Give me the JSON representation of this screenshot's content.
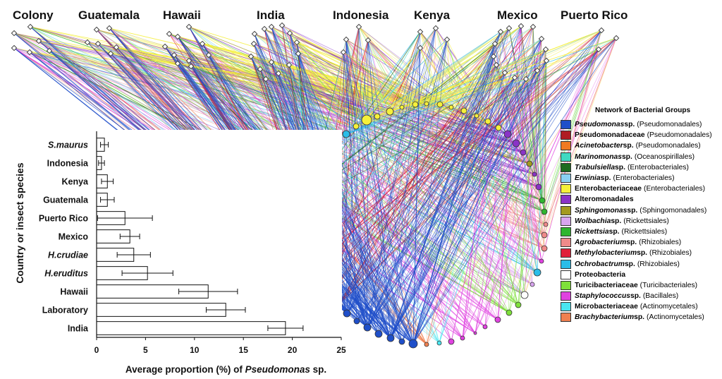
{
  "countries": [
    {
      "key": "colony",
      "label": "Colony"
    },
    {
      "key": "guatemala",
      "label": "Guatemala"
    },
    {
      "key": "hawaii",
      "label": "Hawaii"
    },
    {
      "key": "india",
      "label": "India"
    },
    {
      "key": "indonesia",
      "label": "Indonesia"
    },
    {
      "key": "kenya",
      "label": "Kenya"
    },
    {
      "key": "mexico",
      "label": "Mexico"
    },
    {
      "key": "puerto_rico",
      "label": "Puerto Rico"
    }
  ],
  "legend": {
    "title": "Network of Bacterial Groups",
    "items": [
      {
        "name": "Pseudomonas",
        "suffix": " sp.",
        "italic": true,
        "order": "(Pseudomonadales)",
        "color": "#1f4fc9"
      },
      {
        "name": "Pseudomonadaceae",
        "suffix": "",
        "italic": false,
        "order": "(Pseudomonadales)",
        "color": "#b01c23"
      },
      {
        "name": "Acinetobacter",
        "suffix": " sp.",
        "italic": true,
        "order": "(Pseudomonadales)",
        "color": "#f07a22"
      },
      {
        "name": "Marinomonas",
        "suffix": " sp.",
        "italic": true,
        "order": "(Oceanospirillales)",
        "color": "#3fd9c2"
      },
      {
        "name": "Trabulsiella",
        "suffix": " sp.",
        "italic": true,
        "order": "(Enterobacteriales)",
        "color": "#1d6b1f"
      },
      {
        "name": "Erwinia",
        "suffix": " sp.",
        "italic": true,
        "order": "(Enterobacteriales)",
        "color": "#8ad0f2"
      },
      {
        "name": "Enterobacteriaceae",
        "suffix": "",
        "italic": false,
        "order": "(Enterobacteriales)",
        "color": "#f5f03a"
      },
      {
        "name": "Alteromonadales",
        "suffix": "",
        "italic": false,
        "order": "",
        "color": "#8a33c7"
      },
      {
        "name": "Sphingomonas",
        "suffix": " sp.",
        "italic": true,
        "order": "(Sphingomonadales)",
        "color": "#a39a1f"
      },
      {
        "name": "Wolbachia",
        "suffix": " sp.",
        "italic": true,
        "order": "(Rickettsiales)",
        "color": "#d9a5f0"
      },
      {
        "name": "Rickettsia",
        "suffix": " sp.",
        "italic": true,
        "order": "(Rickettsiales)",
        "color": "#2fb52f"
      },
      {
        "name": "Agrobacterium",
        "suffix": " sp.",
        "italic": true,
        "order": "(Rhizobiales)",
        "color": "#f08a8a"
      },
      {
        "name": "Methylobacterium",
        "suffix": " sp.",
        "italic": true,
        "order": "(Rhizobiales)",
        "color": "#e0203a"
      },
      {
        "name": "Ochrobactrum",
        "suffix": " sp.",
        "italic": true,
        "order": "(Rhizobiales)",
        "color": "#2bbde8"
      },
      {
        "name": "Proteobacteria",
        "suffix": "",
        "italic": false,
        "order": "",
        "color": "#ffffff"
      },
      {
        "name": "Turicibacteriaceae",
        "suffix": "",
        "italic": false,
        "order": "(Turicibacteriales)",
        "color": "#7ee03a"
      },
      {
        "name": "Staphylococcus",
        "suffix": " sp.",
        "italic": true,
        "order": "(Bacillales)",
        "color": "#e042e0"
      },
      {
        "name": "Microbacteriaceae",
        "suffix": "",
        "italic": false,
        "order": "(Actinomycetales)",
        "color": "#4ae6f0"
      },
      {
        "name": "Brachybacterium",
        "suffix": " sp.",
        "italic": true,
        "order": "(Actinomycetales)",
        "color": "#f08050"
      }
    ]
  },
  "chart_data": {
    "type": "bar",
    "orientation": "horizontal",
    "xlabel": "Average proportion (%) of Pseudomonas sp.",
    "ylabel": "Country or insect species",
    "xlim": [
      0,
      25
    ],
    "xticks": [
      0,
      5,
      10,
      15,
      20,
      25
    ],
    "categories": [
      "S.maurus",
      "Indonesia",
      "Kenya",
      "Guatemala",
      "Puerto Rico",
      "Mexico",
      "H.crudiae",
      "H.eruditus",
      "Hawaii",
      "Laboratory",
      "India"
    ],
    "italic_categories": [
      "S.maurus",
      "H.crudiae",
      "H.eruditus"
    ],
    "values": [
      0.8,
      0.5,
      1.1,
      1.1,
      2.9,
      3.4,
      3.8,
      5.2,
      11.4,
      13.2,
      19.3
    ],
    "errors": [
      0.4,
      0.3,
      0.6,
      0.7,
      2.8,
      1.0,
      1.7,
      2.6,
      3.0,
      2.0,
      1.8
    ]
  }
}
